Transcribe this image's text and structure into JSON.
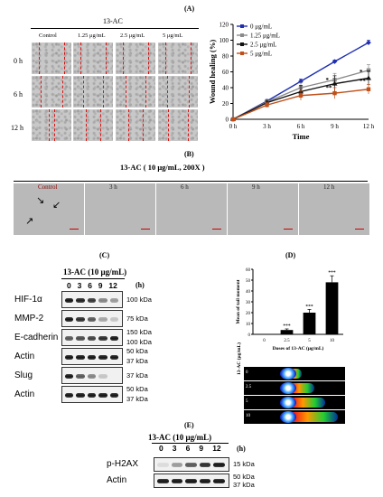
{
  "panel_labels": {
    "a": "(A)",
    "b": "(B)",
    "c": "(C)",
    "d": "(D)",
    "e": "(E)"
  },
  "panelA": {
    "treatment": "13-AC",
    "columns": [
      "Control",
      "1.25 μg/mL",
      "2.5 μg/mL",
      "5 μg/mL"
    ],
    "rows": [
      "0 h",
      "6 h",
      "12 h"
    ]
  },
  "panelB": {
    "title": "13-AC ( 10 μg/mL, 200X )",
    "columns": [
      "Control",
      "3 h",
      "6 h",
      "9 h",
      "12 h"
    ]
  },
  "panelC": {
    "treatment": "13-AC (10 μg/mL)",
    "timepoints": [
      "0",
      "3",
      "6",
      "9",
      "12"
    ],
    "unit": "(h)",
    "rows": [
      {
        "name": "HIF-1α",
        "kda": [
          "100 kDa"
        ]
      },
      {
        "name": "MMP-2",
        "kda": [
          "75 kDa"
        ]
      },
      {
        "name": "E-cadherin",
        "kda": [
          "150 kDa",
          "100 kDa"
        ]
      },
      {
        "name": "Actin",
        "kda": [
          "50 kDa",
          "37 kDa"
        ]
      },
      {
        "name": "Slug",
        "kda": [
          "37 kDa"
        ]
      },
      {
        "name": "Actin",
        "kda": [
          "50 kDa",
          "37 kDa"
        ]
      }
    ]
  },
  "panelE": {
    "treatment": "13-AC (10 μg/mL)",
    "timepoints": [
      "0",
      "3",
      "6",
      "9",
      "12"
    ],
    "unit": "(h)",
    "rows": [
      {
        "name": "p-H2AX",
        "kda": [
          "15 kDa"
        ]
      },
      {
        "name": "Actin",
        "kda": [
          "50 kDa",
          "37 kDa"
        ]
      }
    ]
  },
  "panelD_image": {
    "ylabel": "13-AC (μg/mL)",
    "rows": [
      "0",
      "2.5",
      "5",
      "10"
    ]
  },
  "chart_data": [
    {
      "type": "line",
      "xlabel": "Time",
      "ylabel": "Wound healing (%)",
      "categories": [
        "0 h",
        "3 h",
        "6 h",
        "9 h",
        "12 h"
      ],
      "ylim": [
        0,
        120
      ],
      "yticks": [
        0,
        20,
        40,
        60,
        80,
        100,
        120
      ],
      "legend": "top-left",
      "series": [
        {
          "name": "0 μg/mL",
          "color": "#1f2fb0",
          "values": [
            0,
            23,
            48,
            73,
            97
          ],
          "err": [
            0,
            2,
            3,
            2,
            3
          ]
        },
        {
          "name": "1.25 μg/mL",
          "color": "#8a8a8a",
          "values": [
            0,
            22,
            40,
            50,
            62
          ],
          "err": [
            0,
            3,
            6,
            8,
            7
          ]
        },
        {
          "name": "2.5 μg/mL",
          "color": "#111111",
          "values": [
            0,
            21,
            35,
            45,
            52
          ],
          "err": [
            0,
            3,
            8,
            10,
            9
          ]
        },
        {
          "name": "5 μg/mL",
          "color": "#c0501a",
          "values": [
            0,
            18,
            30,
            33,
            38
          ],
          "err": [
            0,
            3,
            6,
            7,
            6
          ]
        }
      ],
      "annotations": [
        "*",
        "**",
        "*",
        "**"
      ]
    },
    {
      "type": "bar",
      "xlabel": "Doses of 13-AC (μg/mL)",
      "ylabel": "Mean of tail moment",
      "categories": [
        "0",
        "2.5",
        "5",
        "10"
      ],
      "values": [
        0,
        4,
        20,
        48
      ],
      "err": [
        0,
        1,
        3,
        6
      ],
      "ylim": [
        0,
        60
      ],
      "yticks": [
        0,
        10,
        20,
        30,
        40,
        50,
        60
      ],
      "labels": [
        "",
        "***",
        "***",
        "***"
      ]
    }
  ]
}
